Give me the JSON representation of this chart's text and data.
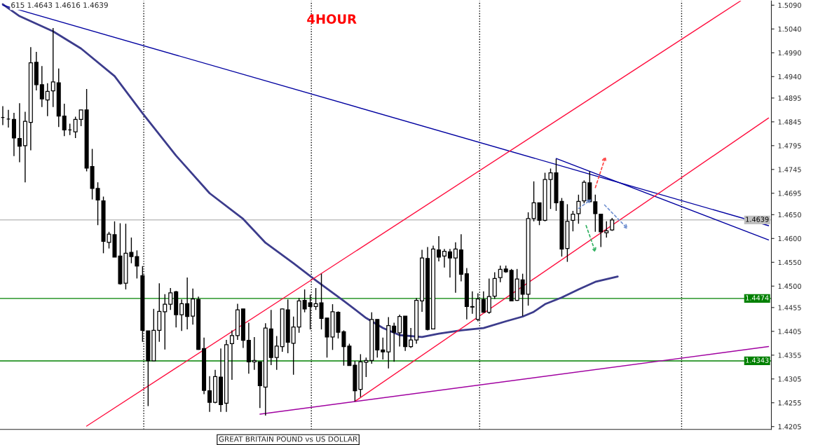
{
  "chart_data": {
    "type": "candlestick",
    "title": "4HOUR",
    "categories": [
      null,
      null,
      null,
      null,
      null,
      null,
      null,
      null,
      null,
      null,
      null,
      null,
      null,
      null,
      null,
      null,
      null,
      null,
      null,
      null,
      null,
      null,
      null,
      null,
      null,
      null,
      null,
      null,
      null,
      null,
      null,
      null,
      null,
      null,
      null,
      null,
      null,
      null,
      null,
      null,
      null,
      null,
      null,
      null,
      null,
      null,
      null,
      null,
      null,
      null,
      null,
      null,
      null,
      null,
      null,
      null,
      null,
      null,
      null,
      null,
      null,
      null,
      null,
      null,
      null,
      null,
      null,
      null,
      null,
      null,
      null,
      null,
      null,
      null,
      null,
      null,
      null,
      null,
      null,
      null,
      null,
      null,
      null,
      null,
      null,
      null,
      null,
      null,
      null,
      null,
      null,
      null,
      null,
      null,
      null,
      null,
      null,
      null,
      null,
      null,
      null,
      null,
      null,
      null,
      null,
      null,
      null,
      null,
      null,
      null,
      null,
      null,
      null,
      null,
      null,
      null,
      null,
      null,
      null,
      null,
      null,
      null,
      null,
      null,
      null,
      null,
      null,
      null,
      null,
      null,
      null,
      null,
      null,
      null,
      null,
      null,
      null,
      null
    ],
    "ohlc": [
      [
        1.4854,
        1.4878,
        1.4838,
        1.4854
      ],
      [
        1.4851,
        1.487,
        1.4833,
        1.4851
      ],
      [
        1.485,
        1.4864,
        1.4773,
        1.4811
      ],
      [
        1.481,
        1.4884,
        1.476,
        1.4794
      ],
      [
        1.4795,
        1.4866,
        1.4718,
        1.4846
      ],
      [
        1.4844,
        1.5002,
        1.4785,
        1.4969
      ],
      [
        1.497,
        1.4992,
        1.4911,
        1.4923
      ],
      [
        1.4923,
        1.4962,
        1.4876,
        1.4893
      ],
      [
        1.4891,
        1.4926,
        1.4857,
        1.4909
      ],
      [
        1.491,
        1.5042,
        1.4876,
        1.4929
      ],
      [
        1.4927,
        1.4957,
        1.4834,
        1.4857
      ],
      [
        1.4857,
        1.4883,
        1.4815,
        1.4828
      ],
      [
        1.4828,
        1.4841,
        1.4817,
        1.4828
      ],
      [
        1.4824,
        1.4856,
        1.4811,
        1.485
      ],
      [
        1.485,
        1.487,
        1.4836,
        1.487
      ],
      [
        1.487,
        1.4914,
        1.4741,
        1.4748
      ],
      [
        1.4751,
        1.4788,
        1.4682,
        1.4705
      ],
      [
        1.4705,
        1.4718,
        1.4628,
        1.4681
      ],
      [
        1.4679,
        1.4688,
        1.4569,
        1.4594
      ],
      [
        1.4592,
        1.4614,
        1.4579,
        1.4609
      ],
      [
        1.4608,
        1.4636,
        1.4561,
        1.4561
      ],
      [
        1.4563,
        1.4632,
        1.4503,
        1.4505
      ],
      [
        1.4506,
        1.4631,
        1.4493,
        1.4569
      ],
      [
        1.4571,
        1.4602,
        1.4548,
        1.4562
      ],
      [
        1.4562,
        1.4575,
        1.4516,
        1.4542
      ],
      [
        1.4522,
        1.4542,
        1.4383,
        1.4407
      ],
      [
        1.4406,
        1.4406,
        1.4248,
        1.4343
      ],
      [
        1.4343,
        1.4452,
        1.4343,
        1.4407
      ],
      [
        1.4407,
        1.4506,
        1.4383,
        1.4447
      ],
      [
        1.4446,
        1.4483,
        1.4367,
        1.4462
      ],
      [
        1.4462,
        1.4496,
        1.445,
        1.4486
      ],
      [
        1.4488,
        1.449,
        1.4413,
        1.444
      ],
      [
        1.444,
        1.4472,
        1.4406,
        1.4463
      ],
      [
        1.4463,
        1.4518,
        1.4409,
        1.4436
      ],
      [
        1.4437,
        1.4495,
        1.4419,
        1.4473
      ],
      [
        1.4472,
        1.4478,
        1.4366,
        1.4367
      ],
      [
        1.4369,
        1.4392,
        1.4273,
        1.4281
      ],
      [
        1.428,
        1.4311,
        1.4236,
        1.4256
      ],
      [
        1.4256,
        1.4324,
        1.4254,
        1.431
      ],
      [
        1.4309,
        1.4369,
        1.4236,
        1.4251
      ],
      [
        1.4254,
        1.4387,
        1.4236,
        1.4377
      ],
      [
        1.4379,
        1.4407,
        1.4303,
        1.4396
      ],
      [
        1.4396,
        1.4463,
        1.4387,
        1.445
      ],
      [
        1.4452,
        1.4452,
        1.437,
        1.4386
      ],
      [
        1.4386,
        1.4423,
        1.4316,
        1.4341
      ],
      [
        1.4341,
        1.4393,
        1.4324,
        1.4344
      ],
      [
        1.4341,
        1.4341,
        1.4244,
        1.4291
      ],
      [
        1.4288,
        1.4422,
        1.4228,
        1.4412
      ],
      [
        1.441,
        1.445,
        1.4334,
        1.435
      ],
      [
        1.435,
        1.4395,
        1.4324,
        1.4374
      ],
      [
        1.4373,
        1.4453,
        1.4362,
        1.4452
      ],
      [
        1.445,
        1.4472,
        1.4359,
        1.4382
      ],
      [
        1.438,
        1.4436,
        1.4314,
        1.4414
      ],
      [
        1.4414,
        1.4475,
        1.4402,
        1.4469
      ],
      [
        1.447,
        1.4493,
        1.4445,
        1.4452
      ],
      [
        1.4465,
        1.4482,
        1.4409,
        1.4457
      ],
      [
        1.4457,
        1.4496,
        1.445,
        1.4463
      ],
      [
        1.4465,
        1.4526,
        1.4409,
        1.4432
      ],
      [
        1.4433,
        1.4433,
        1.435,
        1.4393
      ],
      [
        1.4393,
        1.4462,
        1.4366,
        1.4446
      ],
      [
        1.4445,
        1.4447,
        1.439,
        1.4403
      ],
      [
        1.4404,
        1.4407,
        1.4333,
        1.4373
      ],
      [
        1.4374,
        1.4379,
        1.4333,
        1.4333
      ],
      [
        1.4334,
        1.4343,
        1.4258,
        1.428
      ],
      [
        1.4283,
        1.4357,
        1.4267,
        1.4341
      ],
      [
        1.434,
        1.435,
        1.4309,
        1.4344
      ],
      [
        1.4344,
        1.4445,
        1.4337,
        1.443
      ],
      [
        1.443,
        1.443,
        1.435,
        1.4366
      ],
      [
        1.4366,
        1.4392,
        1.4346,
        1.4362
      ],
      [
        1.4362,
        1.4435,
        1.4327,
        1.4417
      ],
      [
        1.4416,
        1.4423,
        1.4341,
        1.4403
      ],
      [
        1.4402,
        1.444,
        1.4373,
        1.4436
      ],
      [
        1.4437,
        1.4437,
        1.4364,
        1.4373
      ],
      [
        1.4373,
        1.4412,
        1.437,
        1.4387
      ],
      [
        1.4387,
        1.4475,
        1.4379,
        1.447
      ],
      [
        1.4469,
        1.4576,
        1.4446,
        1.4559
      ],
      [
        1.4558,
        1.4582,
        1.4407,
        1.4409
      ],
      [
        1.441,
        1.4585,
        1.441,
        1.4578
      ],
      [
        1.4576,
        1.4605,
        1.4552,
        1.4561
      ],
      [
        1.4563,
        1.4578,
        1.4539,
        1.4573
      ],
      [
        1.4572,
        1.4578,
        1.4518,
        1.4559
      ],
      [
        1.4559,
        1.4592,
        1.4486,
        1.4578
      ],
      [
        1.4576,
        1.4609,
        1.451,
        1.4525
      ],
      [
        1.4526,
        1.4538,
        1.443,
        1.4457
      ],
      [
        1.4457,
        1.4489,
        1.4442,
        1.4456
      ],
      [
        1.443,
        1.4485,
        1.4426,
        1.4473
      ],
      [
        1.4472,
        1.4489,
        1.4445,
        1.4445
      ],
      [
        1.4445,
        1.4516,
        1.4442,
        1.4478
      ],
      [
        1.4479,
        1.4529,
        1.4473,
        1.4516
      ],
      [
        1.4518,
        1.4543,
        1.4508,
        1.4535
      ],
      [
        1.4536,
        1.4543,
        1.4528,
        1.453
      ],
      [
        1.4533,
        1.4536,
        1.4469,
        1.4469
      ],
      [
        1.447,
        1.4536,
        1.4469,
        1.4515
      ],
      [
        1.4513,
        1.4526,
        1.4437,
        1.4483
      ],
      [
        1.4483,
        1.4655,
        1.4459,
        1.4642
      ],
      [
        1.4642,
        1.472,
        1.4636,
        1.4675
      ],
      [
        1.4675,
        1.4675,
        1.4628,
        1.4638
      ],
      [
        1.4638,
        1.4738,
        1.4636,
        1.4724
      ],
      [
        1.4724,
        1.4747,
        1.4662,
        1.4738
      ],
      [
        1.4738,
        1.4767,
        1.4658,
        1.4675
      ],
      [
        1.4678,
        1.4685,
        1.4562,
        1.4578
      ],
      [
        1.4579,
        1.4672,
        1.4551,
        1.4636
      ],
      [
        1.4638,
        1.4658,
        1.4615,
        1.4651
      ],
      [
        1.4652,
        1.4692,
        1.4631,
        1.4678
      ],
      [
        1.4679,
        1.4722,
        1.4674,
        1.4718
      ],
      [
        1.4717,
        1.4741,
        1.4677,
        1.4677
      ],
      [
        1.4677,
        1.4692,
        1.4614,
        1.4652
      ],
      [
        1.4651,
        1.4651,
        1.4582,
        1.4614
      ],
      [
        1.4612,
        1.4636,
        1.4602,
        1.4616
      ],
      [
        1.4618,
        1.4643,
        1.4616,
        1.4639
      ],
      null,
      null,
      null,
      null,
      null,
      null,
      null,
      null,
      null,
      null,
      null,
      null,
      null,
      null,
      null,
      null,
      null,
      null,
      null,
      null,
      null,
      null,
      null,
      null,
      null,
      null,
      null,
      null
    ],
    "series": [
      {
        "type": "line",
        "color": "#3c3c8c",
        "values": [
          1.5092,
          null,
          null,
          1.5067,
          null,
          null,
          null,
          null,
          null,
          1.5035,
          null,
          null,
          null,
          null,
          1.4999,
          null,
          null,
          null,
          null,
          null,
          1.4941,
          null,
          null,
          null,
          null,
          1.4863,
          null,
          null,
          null,
          null,
          null,
          1.4774,
          null,
          null,
          null,
          null,
          null,
          1.4695,
          null,
          null,
          null,
          null,
          null,
          1.4641,
          null,
          null,
          null,
          1.4591,
          null,
          null,
          null,
          null,
          1.4548,
          null,
          null,
          null,
          1.4512,
          null,
          null,
          null,
          null,
          1.4469,
          null,
          null,
          null,
          1.4433,
          null,
          null,
          1.4412,
          null,
          null,
          1.4397,
          null,
          null,
          null,
          1.4393,
          null,
          null,
          1.44,
          null,
          null,
          null,
          1.4407,
          null,
          null,
          null,
          1.4412,
          null,
          null,
          null,
          1.4426,
          null,
          null,
          1.4436,
          null,
          1.4446,
          null,
          1.4462,
          null,
          null,
          1.4476,
          null,
          null,
          1.4493,
          null,
          null,
          1.4509,
          null,
          null,
          null,
          1.452,
          null,
          null,
          null,
          null,
          null,
          null,
          null,
          null,
          null,
          null,
          null,
          null,
          null,
          null,
          null,
          null,
          null,
          null,
          null,
          null,
          null,
          null,
          null,
          null,
          null,
          null,
          null
        ]
      },
      {
        "type": "line",
        "color": "#0000a0",
        "values": [
          1.509,
          null,
          null,
          null,
          null,
          null,
          null,
          null,
          null,
          null,
          null,
          null,
          null,
          null,
          null,
          null,
          null,
          null,
          null,
          null,
          null,
          null,
          null,
          null,
          null,
          null,
          null,
          null,
          null,
          null,
          null,
          null,
          null,
          null,
          null,
          null,
          null,
          null,
          null,
          null,
          null,
          null,
          null,
          null,
          null,
          null,
          null,
          null,
          null,
          null,
          null,
          null,
          null,
          null,
          null,
          null,
          null,
          null,
          null,
          null,
          null,
          null,
          null,
          null,
          null,
          null,
          null,
          null,
          null,
          null,
          null,
          null,
          null,
          null,
          null,
          null,
          null,
          null,
          null,
          null,
          null,
          null,
          null,
          null,
          null,
          null,
          null,
          null,
          null,
          null,
          null,
          null,
          null,
          null,
          null,
          null,
          null,
          null,
          null,
          null,
          null,
          null,
          null,
          null,
          null,
          null,
          null,
          null,
          null,
          null,
          null,
          null,
          null,
          null,
          null,
          null,
          null,
          null,
          null,
          null,
          null,
          null,
          null,
          null,
          null,
          null,
          null,
          null,
          null,
          null,
          null,
          null,
          null,
          null,
          null,
          null,
          null,
          1.4627
        ]
      },
      {
        "type": "line",
        "color": "#0000a0",
        "values": [
          null,
          null,
          null,
          null,
          null,
          null,
          null,
          null,
          null,
          null,
          null,
          null,
          null,
          null,
          null,
          null,
          null,
          null,
          null,
          null,
          null,
          null,
          null,
          null,
          null,
          null,
          null,
          null,
          null,
          null,
          null,
          null,
          null,
          null,
          null,
          null,
          null,
          null,
          null,
          null,
          null,
          null,
          null,
          null,
          null,
          null,
          null,
          null,
          null,
          null,
          null,
          null,
          null,
          null,
          null,
          null,
          null,
          null,
          null,
          null,
          null,
          null,
          null,
          null,
          null,
          null,
          null,
          null,
          null,
          null,
          null,
          null,
          null,
          null,
          null,
          null,
          null,
          null,
          null,
          null,
          null,
          null,
          null,
          null,
          null,
          null,
          null,
          null,
          null,
          null,
          null,
          null,
          null,
          null,
          null,
          null,
          null,
          null,
          null,
          1.4768,
          null,
          null,
          null,
          null,
          null,
          null,
          null,
          null,
          null,
          null,
          null,
          null,
          null,
          null,
          null,
          null,
          null,
          null,
          null,
          null,
          null,
          null,
          null,
          null,
          null,
          null,
          null,
          null,
          null,
          null,
          null,
          null,
          null,
          null,
          null,
          null,
          null,
          1.4597
        ]
      },
      {
        "type": "line",
        "color": "#ff1040",
        "values": [
          null,
          null,
          null,
          null,
          null,
          null,
          null,
          null,
          null,
          null,
          null,
          null,
          null,
          null,
          null,
          1.4206,
          null,
          null,
          null,
          null,
          null,
          null,
          null,
          null,
          null,
          null,
          null,
          null,
          null,
          null,
          null,
          null,
          null,
          null,
          null,
          null,
          null,
          null,
          null,
          null,
          null,
          null,
          null,
          null,
          null,
          null,
          null,
          null,
          null,
          null,
          null,
          null,
          null,
          null,
          null,
          null,
          null,
          null,
          null,
          null,
          null,
          null,
          null,
          null,
          null,
          null,
          null,
          null,
          null,
          null,
          null,
          null,
          null,
          null,
          null,
          null,
          null,
          null,
          null,
          null,
          null,
          null,
          null,
          null,
          null,
          null,
          null,
          null,
          null,
          null,
          null,
          null,
          null,
          null,
          null,
          null,
          null,
          null,
          null,
          null,
          null,
          null,
          null,
          null,
          null,
          null,
          null,
          null,
          null,
          null,
          null,
          null,
          null,
          null,
          null,
          null,
          null,
          null,
          null,
          null,
          null,
          null,
          null,
          null,
          null,
          null,
          null,
          null,
          null,
          null,
          null,
          null,
          1.5099,
          null,
          null,
          null,
          null,
          null
        ]
      },
      {
        "type": "line",
        "color": "#ff1040",
        "values": [
          null,
          null,
          null,
          null,
          null,
          null,
          null,
          null,
          null,
          null,
          null,
          null,
          null,
          null,
          null,
          null,
          null,
          null,
          null,
          null,
          null,
          null,
          null,
          null,
          null,
          null,
          null,
          null,
          null,
          null,
          null,
          null,
          null,
          null,
          null,
          null,
          null,
          null,
          null,
          null,
          null,
          null,
          null,
          null,
          null,
          null,
          null,
          null,
          null,
          null,
          null,
          null,
          null,
          null,
          null,
          null,
          null,
          null,
          null,
          null,
          null,
          null,
          null,
          1.4258,
          null,
          null,
          null,
          null,
          null,
          null,
          null,
          null,
          null,
          null,
          null,
          null,
          null,
          null,
          null,
          null,
          null,
          null,
          null,
          null,
          null,
          null,
          null,
          null,
          null,
          null,
          null,
          null,
          null,
          null,
          null,
          null,
          null,
          null,
          null,
          null,
          null,
          null,
          null,
          null,
          null,
          null,
          null,
          null,
          null,
          null,
          null,
          null,
          null,
          null,
          null,
          null,
          null,
          null,
          null,
          null,
          null,
          null,
          null,
          null,
          null,
          null,
          null,
          null,
          null,
          null,
          null,
          null,
          null,
          null,
          null,
          null,
          null,
          1.4853
        ]
      },
      {
        "type": "line",
        "color": "#a000a0",
        "values": [
          null,
          null,
          null,
          null,
          null,
          null,
          null,
          null,
          null,
          null,
          null,
          null,
          null,
          null,
          null,
          null,
          null,
          null,
          null,
          null,
          null,
          null,
          null,
          null,
          null,
          null,
          null,
          null,
          null,
          null,
          null,
          null,
          null,
          null,
          null,
          null,
          null,
          null,
          null,
          null,
          null,
          null,
          null,
          null,
          null,
          null,
          1.4231,
          null,
          null,
          null,
          null,
          null,
          null,
          null,
          null,
          null,
          null,
          null,
          null,
          null,
          null,
          null,
          null,
          null,
          null,
          null,
          null,
          null,
          null,
          null,
          null,
          null,
          null,
          null,
          null,
          null,
          null,
          null,
          null,
          null,
          null,
          null,
          null,
          null,
          null,
          null,
          null,
          null,
          null,
          null,
          null,
          null,
          null,
          null,
          null,
          null,
          null,
          null,
          null,
          null,
          null,
          null,
          null,
          null,
          null,
          null,
          null,
          null,
          null,
          null,
          null,
          null,
          null,
          null,
          null,
          null,
          null,
          null,
          null,
          null,
          null,
          null,
          null,
          null,
          null,
          null,
          null,
          null,
          null,
          null,
          null,
          null,
          null,
          null,
          null,
          null,
          null,
          1.4373
        ]
      }
    ],
    "ref_lines": [
      {
        "axis": "y",
        "value": 1.4639,
        "label": "1.4639",
        "color": "#c0c0c0"
      },
      {
        "axis": "y",
        "value": 1.4474,
        "label": "1.4474",
        "color": "#008000"
      },
      {
        "axis": "y",
        "value": 1.4343,
        "label": "1.4343",
        "color": "#008000"
      }
    ],
    "ylim": [
      1.4199,
      1.5099
    ],
    "yticks": [
      {
        "value": 1.509,
        "label": "1.5090"
      },
      {
        "value": 1.504,
        "label": "1.5040"
      },
      {
        "value": 1.499,
        "label": "1.4990"
      },
      {
        "value": 1.494,
        "label": "1.4940"
      },
      1.4895,
      1.4845,
      1.4795,
      1.4745,
      1.4695,
      {
        "value": 1.465,
        "label": "1.4650"
      },
      {
        "value": 1.46,
        "label": "1.4600"
      },
      {
        "value": 1.455,
        "label": "1.4550"
      },
      {
        "value": 1.45,
        "label": "1.4500"
      },
      1.4455,
      1.4405,
      1.4355,
      1.4305,
      1.4255,
      1.4205
    ],
    "tick_labels": "y",
    "annotations": [
      "615 1.4643 1.4616 1.4639",
      "GREAT BRITAIN POUND vs US DOLLAR"
    ]
  }
}
